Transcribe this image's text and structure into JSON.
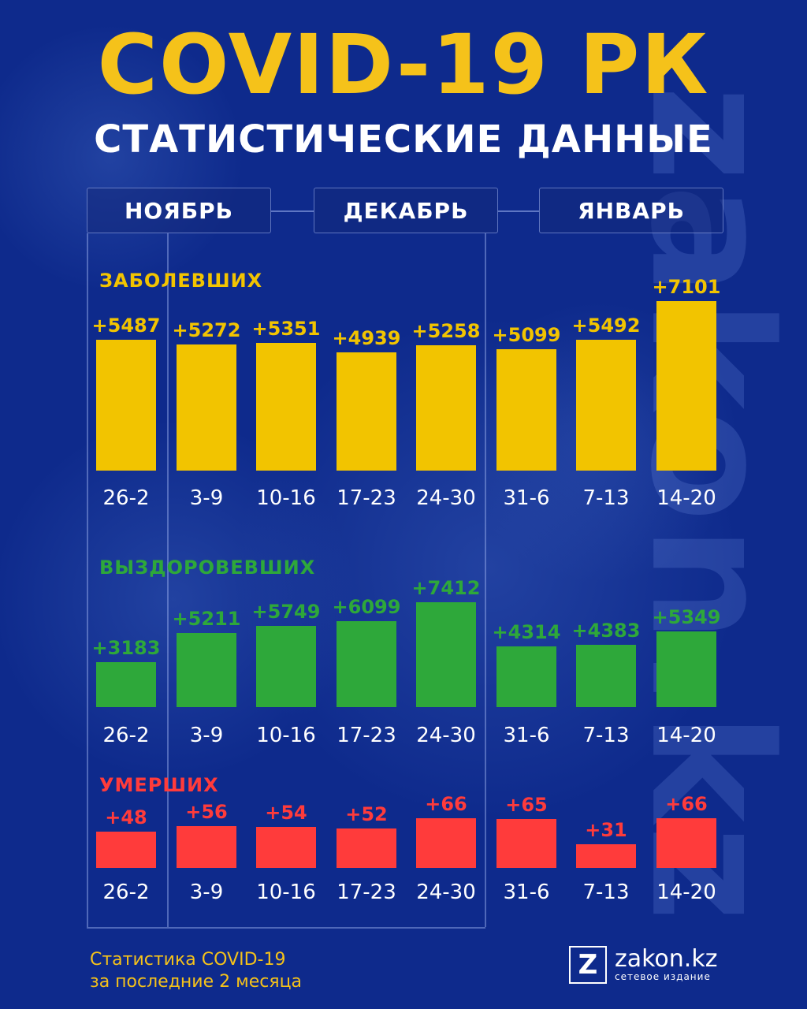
{
  "title": "COVID-19 РК",
  "subtitle": "СТАТИСТИЧЕСКИЕ ДАННЫЕ",
  "months": [
    "НОЯБРЬ",
    "ДЕКАБРЬ",
    "ЯНВАРЬ"
  ],
  "watermark": "zakon.kz",
  "chart_data": {
    "type": "bar",
    "categories": [
      "26-2",
      "3-9",
      "10-16",
      "17-23",
      "24-30",
      "31-6",
      "7-13",
      "14-20"
    ],
    "series": [
      {
        "name": "ЗАБОЛЕВШИХ",
        "color": "#f2c400",
        "values": [
          5487,
          5272,
          5351,
          4939,
          5258,
          5099,
          5492,
          7101
        ],
        "labels": [
          "+5487",
          "+5272",
          "+5351",
          "+4939",
          "+5258",
          "+5099",
          "+5492",
          "+7101"
        ]
      },
      {
        "name": "ВЫЗДОРОВЕВШИХ",
        "color": "#2ea83a",
        "values": [
          3183,
          5211,
          5749,
          6099,
          7412,
          4314,
          4383,
          5349
        ],
        "labels": [
          "+3183",
          "+5211",
          "+5749",
          "+6099",
          "+7412",
          "+4314",
          "+4383",
          "+5349"
        ]
      },
      {
        "name": "УМЕРШИХ",
        "color": "#ff3b3b",
        "values": [
          48,
          56,
          54,
          52,
          66,
          65,
          31,
          66
        ],
        "labels": [
          "+48",
          "+56",
          "+54",
          "+52",
          "+66",
          "+65",
          "+31",
          "+66"
        ]
      }
    ]
  },
  "footer": {
    "line1": "Статистика COVID-19",
    "line2": "за последние 2 месяца"
  },
  "logo": {
    "mark": "Z",
    "name": "zakon.kz",
    "tagline": "сетевое издание"
  }
}
